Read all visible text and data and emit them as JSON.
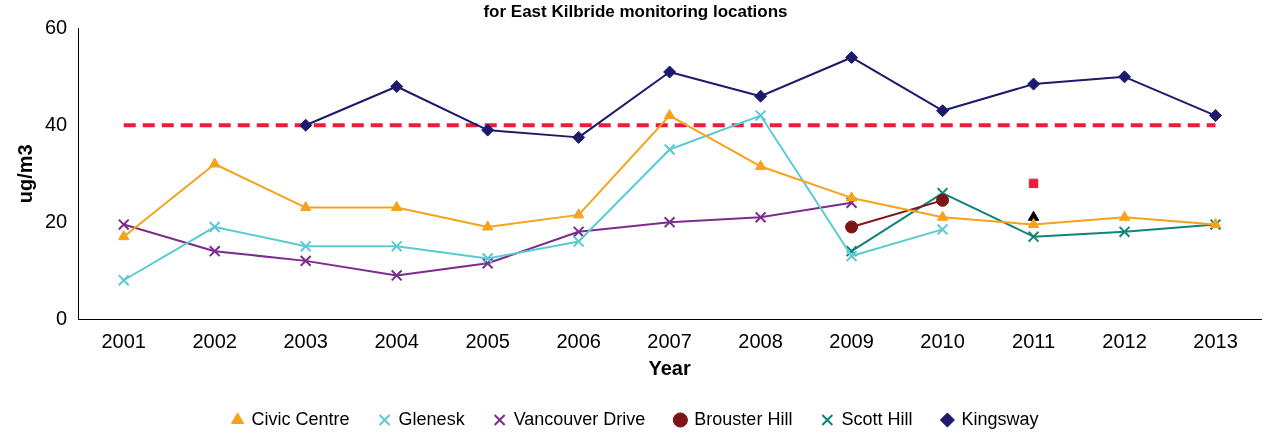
{
  "chart_data": {
    "type": "line",
    "title": "for East Kilbride monitoring locations",
    "xlabel": "Year",
    "ylabel": "ug/m3",
    "categories": [
      "2001",
      "2002",
      "2003",
      "2004",
      "2005",
      "2006",
      "2007",
      "2008",
      "2009",
      "2010",
      "2011",
      "2012",
      "2013"
    ],
    "ylim": [
      0,
      60
    ],
    "yticks": [
      0,
      20,
      40,
      60
    ],
    "grid": false,
    "legend": "bottom",
    "ref_lines": [
      {
        "axis": "y",
        "value": 40,
        "color": "#ee1c3a",
        "line_style": "dashed"
      }
    ],
    "series": [
      {
        "name": "Civic Centre",
        "color": "#f7a21b",
        "marker": "triangle",
        "values": [
          17,
          32,
          23,
          23,
          19,
          21.5,
          42,
          31.5,
          25,
          21,
          19.5,
          21,
          19.5
        ]
      },
      {
        "name": "Glenesk",
        "color": "#5ccad3",
        "marker": "cross",
        "values": [
          8,
          19,
          15,
          15,
          12.5,
          16,
          35,
          42,
          13,
          18.5,
          null,
          null,
          null
        ]
      },
      {
        "name": "Vancouver Drive",
        "color": "#7b2c8c",
        "marker": "cross",
        "values": [
          19.5,
          14,
          12,
          9,
          11.5,
          18,
          20,
          21,
          24,
          null,
          null,
          null,
          null
        ]
      },
      {
        "name": "Brouster Hill",
        "color": "#7d1416",
        "marker": "circle",
        "values": [
          null,
          null,
          null,
          null,
          null,
          null,
          null,
          null,
          19,
          24.5,
          null,
          null,
          null
        ]
      },
      {
        "name": "Scott Hill",
        "color": "#0e8577",
        "marker": "cross",
        "values": [
          null,
          null,
          null,
          null,
          null,
          null,
          null,
          null,
          14,
          26,
          17,
          18,
          19.5
        ]
      },
      {
        "name": "Kingsway",
        "color": "#1d1a6e",
        "marker": "diamond",
        "values": [
          null,
          null,
          40,
          48,
          39,
          37.5,
          51,
          46,
          54,
          43,
          48.5,
          50,
          42
        ]
      },
      {
        "type": "scatter",
        "color": "#ee1c3a",
        "marker": "square",
        "values": [
          null,
          null,
          null,
          null,
          null,
          null,
          null,
          null,
          null,
          null,
          28,
          null,
          null
        ]
      },
      {
        "type": "scatter",
        "color": "#000000",
        "marker": "triangle",
        "values": [
          null,
          null,
          null,
          null,
          null,
          null,
          null,
          null,
          null,
          null,
          21,
          null,
          null
        ]
      }
    ]
  }
}
